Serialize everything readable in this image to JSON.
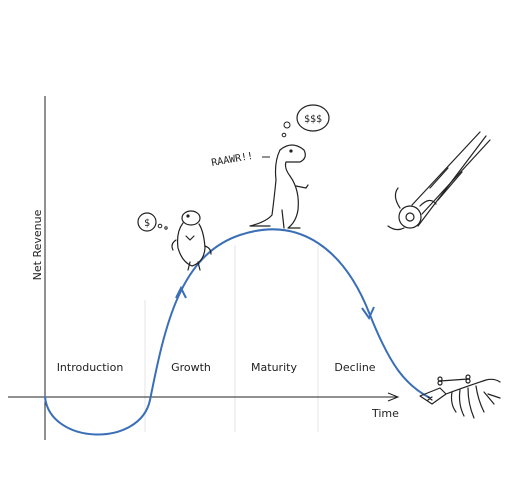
{
  "axes": {
    "y_label": "Net Revenue",
    "x_label": "Time"
  },
  "stages": [
    {
      "name": "Introduction"
    },
    {
      "name": "Growth"
    },
    {
      "name": "Maturity"
    },
    {
      "name": "Decline"
    }
  ],
  "annotations": {
    "growth_bubble": "$",
    "maturity_bubble": "$$$",
    "roar": "RAAWR!!"
  },
  "colors": {
    "curve": "#3a6fb7",
    "ink": "#222222",
    "divider": "#e4e4e4"
  },
  "icons": [
    "small-dinosaur-icon",
    "trex-icon",
    "meteor-icon",
    "skeleton-icon"
  ]
}
